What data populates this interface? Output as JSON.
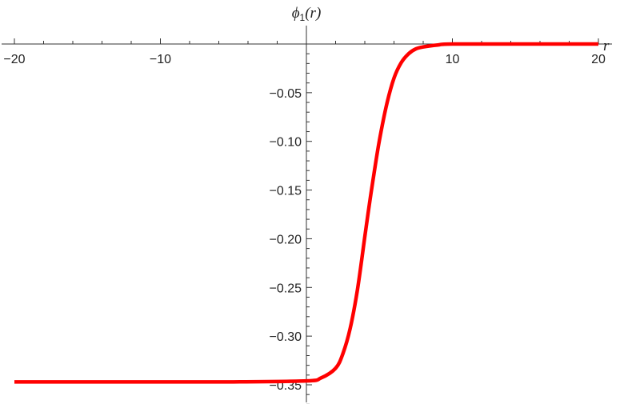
{
  "chart_data": {
    "type": "line",
    "title": "",
    "xlabel": "r",
    "ylabel_parts": {
      "symbol": "ϕ",
      "subscript": "1",
      "argument": "(r)"
    },
    "xlim": [
      -20,
      20
    ],
    "ylim": [
      -0.35,
      0
    ],
    "x_ticks": [
      -20,
      -10,
      10,
      20
    ],
    "x_tick_labels": [
      "−20",
      "−10",
      "10",
      "20"
    ],
    "y_ticks": [
      -0.05,
      -0.1,
      -0.15,
      -0.2,
      -0.25,
      -0.3,
      -0.35
    ],
    "y_tick_labels": [
      "−0.05",
      "−0.10",
      "−0.15",
      "−0.20",
      "−0.25",
      "−0.30",
      "−0.35"
    ],
    "grid": false,
    "series": [
      {
        "color": "#ff0000",
        "x": [
          -20,
          -15,
          -10,
          -5,
          0,
          1,
          2,
          2.5,
          3,
          3.5,
          4,
          4.3,
          4.6,
          5,
          5.5,
          6,
          6.5,
          7,
          7.5,
          8,
          9,
          10,
          15,
          20
        ],
        "y": [
          -0.347,
          -0.347,
          -0.347,
          -0.347,
          -0.346,
          -0.343,
          -0.333,
          -0.318,
          -0.292,
          -0.252,
          -0.198,
          -0.166,
          -0.136,
          -0.099,
          -0.062,
          -0.035,
          -0.019,
          -0.01,
          -0.005,
          -0.003,
          -0.001,
          0,
          0,
          0
        ]
      }
    ]
  }
}
